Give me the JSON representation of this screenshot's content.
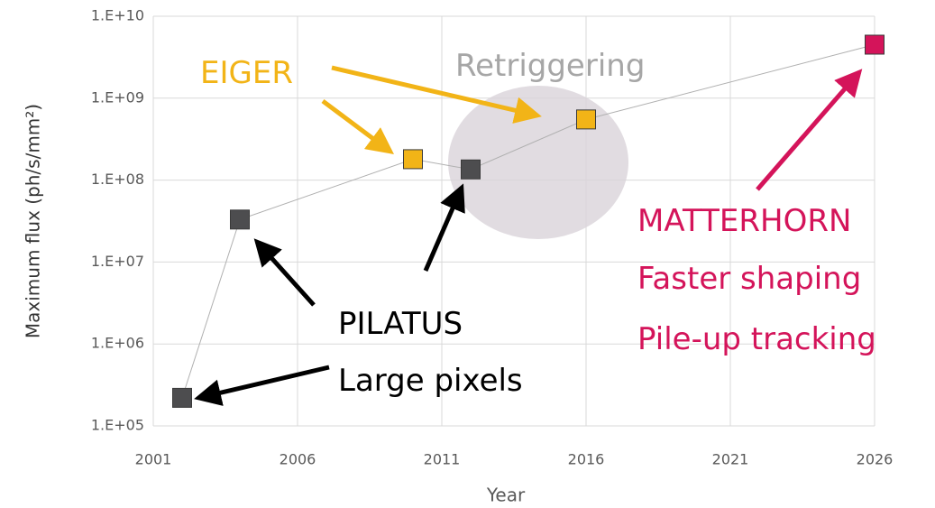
{
  "chart_data": {
    "type": "scatter",
    "x_label": "Year",
    "y_label": "Maximum flux (ph/s/mm²)",
    "x": [
      2002,
      2004,
      2010,
      2012,
      2016,
      2026
    ],
    "values": [
      220000,
      33000000,
      180000000,
      135000000,
      550000000,
      4500000000
    ],
    "colors": [
      "#4d4d4f",
      "#4d4d4f",
      "#f2b417",
      "#4d4d4f",
      "#f2b417",
      "#d4145a"
    ],
    "line_color": "#b0b0b0",
    "xlim": [
      2001,
      2026
    ],
    "xticks": [
      2001,
      2006,
      2011,
      2016,
      2021,
      2026
    ],
    "ylim": [
      100000,
      10000000000
    ],
    "yticks": [
      {
        "value": 100000,
        "label": "1.E+05"
      },
      {
        "value": 1000000,
        "label": "1.E+06"
      },
      {
        "value": 10000000,
        "label": "1.E+07"
      },
      {
        "value": 100000000,
        "label": "1.E+08"
      },
      {
        "value": 1000000000,
        "label": "1.E+09"
      },
      {
        "value": 10000000000,
        "label": "1.E+10"
      }
    ],
    "log_y": true,
    "grid": true,
    "annotations": [
      "EIGER",
      "Retriggering",
      "PILATUS",
      "Large pixels",
      "MATTERHORN",
      "Faster shaping",
      "Pile-up tracking"
    ]
  }
}
